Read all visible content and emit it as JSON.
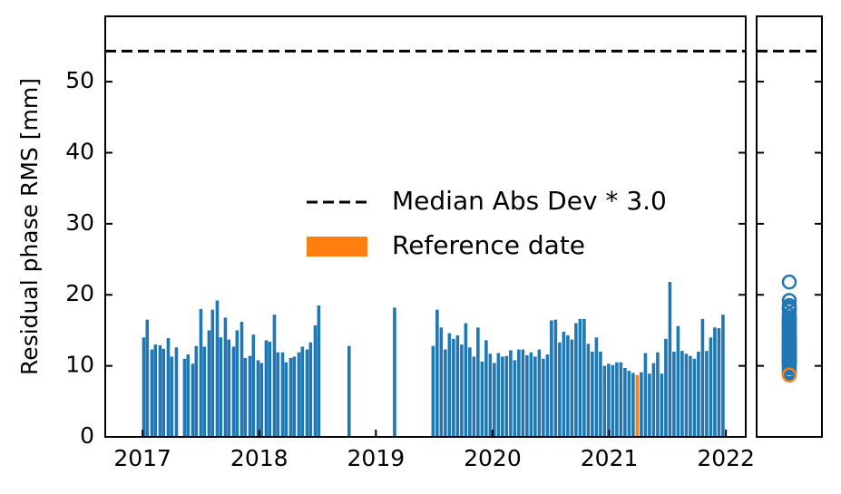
{
  "chart_data": {
    "type": "bar",
    "ylabel": "Residual phase RMS [mm]",
    "xlim": [
      2016.68,
      2022.17
    ],
    "xticks": [
      2017,
      2018,
      2019,
      2020,
      2021,
      2022
    ],
    "ylim": [
      0,
      59.2
    ],
    "yticks": [
      0,
      10,
      20,
      30,
      40,
      50
    ],
    "legend": "center right",
    "series": [
      {
        "color": "#1f77b4",
        "x": [
          2017.01,
          2017.04,
          2017.08,
          2017.11,
          2017.15,
          2017.18,
          2017.22,
          2017.25,
          2017.29,
          2017.36,
          2017.39,
          2017.43,
          2017.46,
          2017.5,
          2017.53,
          2017.57,
          2017.6,
          2017.64,
          2017.67,
          2017.71,
          2017.74,
          2017.78,
          2017.81,
          2017.85,
          2017.88,
          2017.92,
          2017.95,
          2017.99,
          2018.02,
          2018.06,
          2018.09,
          2018.13,
          2018.16,
          2018.2,
          2018.23,
          2018.27,
          2018.3,
          2018.34,
          2018.37,
          2018.41,
          2018.44,
          2018.48,
          2018.51,
          2018.77,
          2019.16,
          2019.49,
          2019.525,
          2019.56,
          2019.595,
          2019.63,
          2019.665,
          2019.7,
          2019.735,
          2019.77,
          2019.805,
          2019.84,
          2019.875,
          2019.91,
          2019.945,
          2019.98,
          2020.015,
          2020.05,
          2020.085,
          2020.12,
          2020.155,
          2020.19,
          2020.225,
          2020.26,
          2020.295,
          2020.33,
          2020.365,
          2020.4,
          2020.435,
          2020.47,
          2020.505,
          2020.54,
          2020.575,
          2020.61,
          2020.645,
          2020.68,
          2020.715,
          2020.75,
          2020.785,
          2020.82,
          2020.855,
          2020.89,
          2020.925,
          2020.96,
          2020.995,
          2021.03,
          2021.065,
          2021.1,
          2021.135,
          2021.17,
          2021.205,
          2021.275,
          2021.31,
          2021.345,
          2021.38,
          2021.415,
          2021.45,
          2021.485,
          2021.52,
          2021.555,
          2021.59,
          2021.625,
          2021.66,
          2021.695,
          2021.73,
          2021.765,
          2021.8,
          2021.835,
          2021.87,
          2021.905,
          2021.94,
          2021.975
        ],
        "values": [
          14.0,
          16.5,
          12.3,
          13.0,
          12.9,
          12.4,
          13.9,
          11.3,
          12.6,
          11.0,
          11.6,
          10.3,
          12.8,
          18.0,
          12.7,
          15.0,
          17.9,
          19.2,
          14.0,
          16.8,
          13.7,
          12.7,
          15.0,
          16.2,
          11.1,
          11.4,
          14.4,
          10.8,
          10.4,
          13.6,
          13.4,
          17.2,
          11.9,
          11.9,
          10.5,
          11.1,
          11.3,
          11.9,
          12.7,
          12.3,
          13.3,
          15.7,
          18.5,
          12.8,
          18.2,
          12.8,
          17.9,
          15.4,
          12.3,
          14.6,
          13.8,
          14.3,
          13.0,
          16.0,
          12.6,
          11.3,
          15.4,
          10.6,
          13.6,
          11.7,
          10.4,
          11.8,
          11.3,
          11.4,
          12.2,
          10.8,
          12.3,
          12.3,
          11.5,
          11.9,
          11.3,
          12.3,
          11.0,
          11.6,
          16.4,
          16.5,
          13.3,
          14.8,
          14.3,
          13.7,
          16.0,
          16.6,
          16.6,
          13.1,
          12.0,
          14.0,
          12.0,
          10.0,
          10.3,
          10.1,
          10.5,
          10.5,
          9.7,
          9.3,
          9.0,
          9.1,
          11.8,
          8.9,
          10.4,
          11.9,
          8.9,
          13.8,
          21.8,
          12.0,
          15.6,
          12.1,
          11.7,
          11.4,
          11.0,
          12.0,
          16.6,
          12.1,
          14.0,
          15.4,
          15.3,
          17.2
        ]
      },
      {
        "name": "Reference date",
        "color": "#ff7f0e",
        "x": [
          2021.24
        ],
        "values": [
          8.7
        ]
      }
    ],
    "hlines": [
      {
        "name": "Median Abs Dev * 3.0",
        "value": 54.3,
        "color": "#000000",
        "style": "dashed"
      }
    ]
  }
}
